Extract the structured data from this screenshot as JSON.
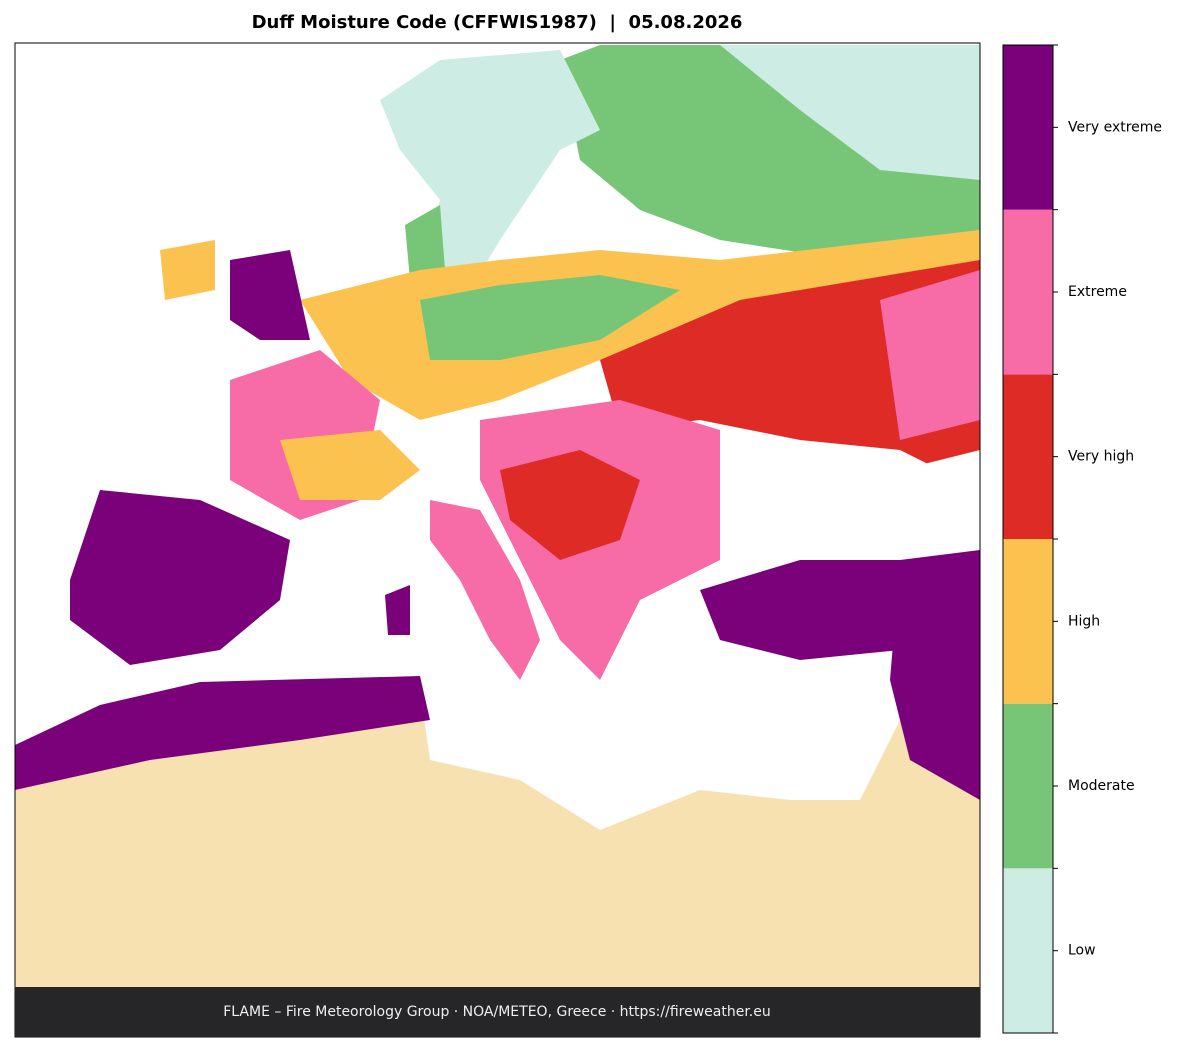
{
  "title": "Duff Moisture Code (CFFWIS1987)  |  05.08.2026",
  "legend": {
    "items": [
      {
        "label": "Low",
        "color": "#cdece4"
      },
      {
        "label": "Moderate",
        "color": "#77c677"
      },
      {
        "label": "High",
        "color": "#fcc24f"
      },
      {
        "label": "Very high",
        "color": "#df2b26"
      },
      {
        "label": "Extreme",
        "color": "#f76ca7"
      },
      {
        "label": "Very extreme",
        "color": "#7b017a"
      }
    ]
  },
  "footer": "FLAME – Fire Meteorology Group · NOA/METEO, Greece · https://fireweather.eu"
}
